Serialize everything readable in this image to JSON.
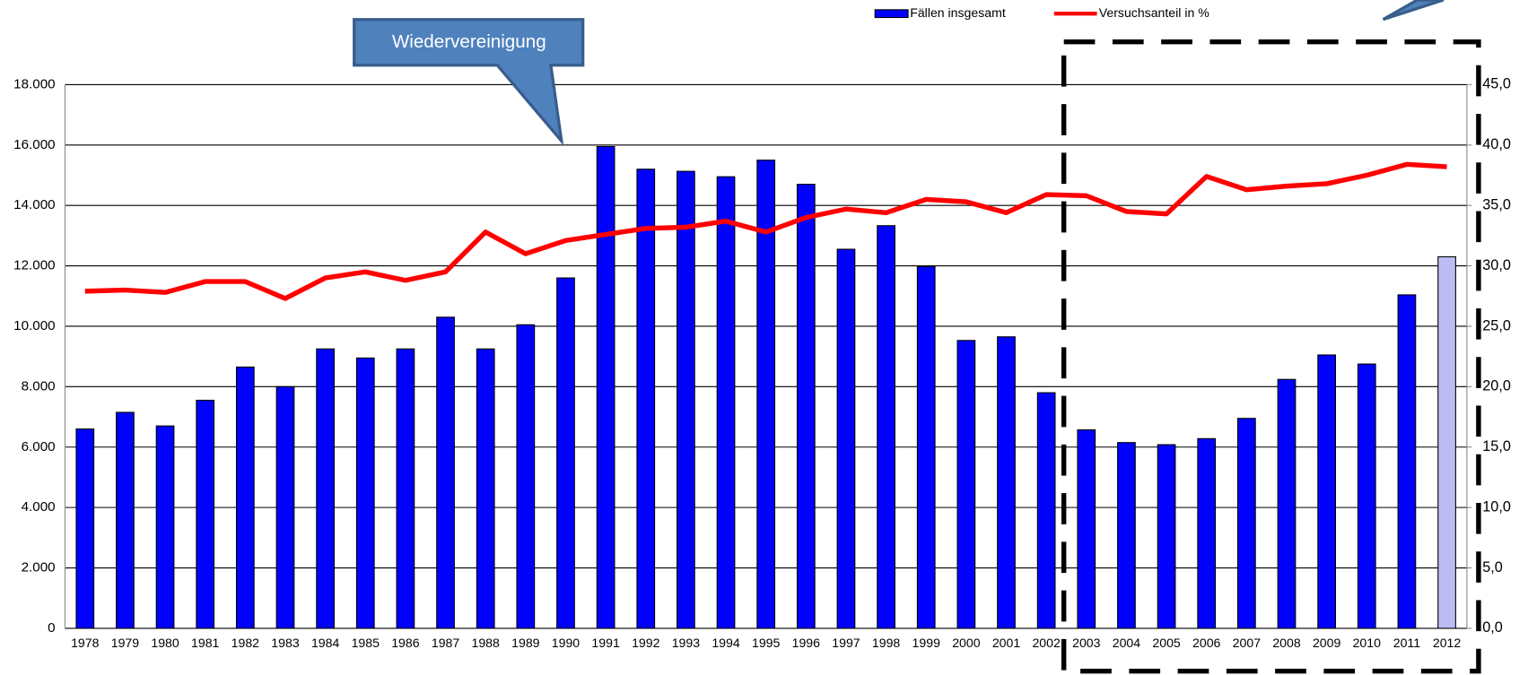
{
  "chart_data": {
    "type": "bar_line",
    "annotations": [
      "Wiedervereinigung"
    ],
    "categories": [
      "1978",
      "1979",
      "1980",
      "1981",
      "1982",
      "1983",
      "1984",
      "1985",
      "1986",
      "1987",
      "1988",
      "1989",
      "1990",
      "1991",
      "1992",
      "1993",
      "1994",
      "1995",
      "1996",
      "1997",
      "1998",
      "1999",
      "2000",
      "2001",
      "2002",
      "2003",
      "2004",
      "2005",
      "2006",
      "2007",
      "2008",
      "2009",
      "2010",
      "2011",
      "2012"
    ],
    "series": [
      {
        "name": "Fällen insgesamt",
        "type": "bar",
        "color": "#0000ff",
        "colors": [
          "#0000ff",
          "#0000ff",
          "#0000ff",
          "#0000ff",
          "#0000ff",
          "#0000ff",
          "#0000ff",
          "#0000ff",
          "#0000ff",
          "#0000ff",
          "#0000ff",
          "#0000ff",
          "#0000ff",
          "#0000ff",
          "#0000ff",
          "#0000ff",
          "#0000ff",
          "#0000ff",
          "#0000ff",
          "#0000ff",
          "#0000ff",
          "#0000ff",
          "#0000ff",
          "#0000ff",
          "#0000ff",
          "#0000ff",
          "#0000ff",
          "#0000ff",
          "#0000ff",
          "#0000ff",
          "#0000ff",
          "#0000ff",
          "#0000ff",
          "#0000ff",
          "#bcbcf5"
        ],
        "values": [
          6600,
          7150,
          6700,
          7550,
          8650,
          8000,
          9250,
          8950,
          9250,
          10300,
          9250,
          10050,
          11600,
          15950,
          15200,
          15130,
          14950,
          15500,
          14700,
          12550,
          13330,
          11980,
          9530,
          9650,
          7800,
          6570,
          6150,
          6080,
          6280,
          6950,
          8240,
          9050,
          8750,
          11040,
          12300
        ]
      },
      {
        "name": "Versuchsanteil in %",
        "type": "line",
        "axis": "y2",
        "color": "#ff0000",
        "values": [
          27.9,
          28.0,
          27.8,
          28.7,
          28.7,
          27.3,
          29.0,
          29.5,
          28.8,
          29.5,
          32.8,
          31.0,
          32.1,
          32.6,
          33.1,
          33.2,
          33.7,
          32.8,
          34.0,
          34.7,
          34.4,
          35.5,
          35.3,
          34.4,
          35.9,
          35.8,
          34.5,
          34.3,
          37.4,
          36.3,
          36.6,
          36.8,
          37.5,
          38.4,
          38.2
        ]
      }
    ],
    "ylim": [
      0,
      18000
    ],
    "yticks": [
      0,
      {
        "value": 2000,
        "label": "2.000"
      },
      {
        "value": 4000,
        "label": "4.000"
      },
      {
        "value": 6000,
        "label": "6.000"
      },
      {
        "value": 8000,
        "label": "8.000"
      },
      {
        "value": 10000,
        "label": "10.000"
      },
      {
        "value": 12000,
        "label": "12.000"
      },
      {
        "value": 14000,
        "label": "14.000"
      },
      {
        "value": 16000,
        "label": "16.000"
      },
      {
        "value": 18000,
        "label": "18.000"
      }
    ],
    "y2lim": [
      0,
      45
    ],
    "y2ticks": [
      {
        "value": 0,
        "label": "0,0"
      },
      {
        "value": 5,
        "label": "5,0"
      },
      {
        "value": 10,
        "label": "10,0"
      },
      {
        "value": 15,
        "label": "15,0"
      },
      {
        "value": 20,
        "label": "20,0"
      },
      {
        "value": 25,
        "label": "25,0"
      },
      {
        "value": 30,
        "label": "30,0"
      },
      {
        "value": 35,
        "label": "35,0"
      },
      {
        "value": 40,
        "label": "40,0"
      },
      {
        "value": 45,
        "label": "45,0"
      }
    ],
    "grid": true,
    "legend": "top"
  }
}
